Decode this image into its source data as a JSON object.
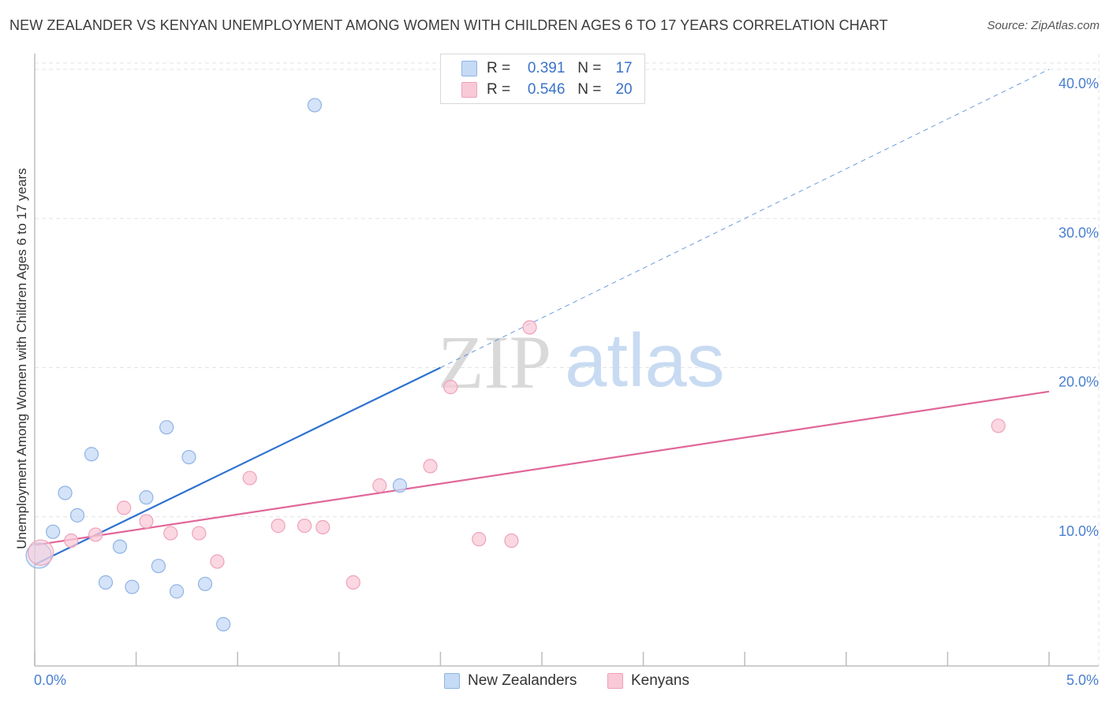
{
  "title": "NEW ZEALANDER VS KENYAN UNEMPLOYMENT AMONG WOMEN WITH CHILDREN AGES 6 TO 17 YEARS CORRELATION CHART",
  "source": "Source: ZipAtlas.com",
  "watermark": {
    "zip": "ZIP",
    "atlas": "atlas"
  },
  "legend": {
    "rows": [
      {
        "r_label": "R =",
        "r_value": "0.391",
        "n_label": "N =",
        "n_value": "17"
      },
      {
        "r_label": "R =",
        "r_value": "0.546",
        "n_label": "N =",
        "n_value": "20"
      }
    ]
  },
  "colors": {
    "nz_fill": "#c5daf5",
    "nz_stroke": "#8fb3e6",
    "nz_line": "#2f72d0",
    "ke_fill": "#f9c9d7",
    "ke_stroke": "#eea2ba",
    "ke_line": "#e0679a",
    "grid": "#e3e3e3",
    "tick_text": "#4a7fd1"
  },
  "chart_data": {
    "type": "scatter",
    "ylabel": "Unemployment Among Women with Children Ages 6 to 17 years",
    "xlabel": "",
    "xlim": [
      0,
      5
    ],
    "ylim": [
      0,
      40
    ],
    "x_tick_labels": [
      "0.0%",
      "5.0%"
    ],
    "y_ticks": [
      10,
      20,
      30,
      40
    ],
    "y_tick_labels": [
      "10.0%",
      "20.0%",
      "30.0%",
      "40.0%"
    ],
    "series": [
      {
        "name": "New Zealanders",
        "points": [
          {
            "x": 0.02,
            "y": 7.4,
            "big": true
          },
          {
            "x": 0.09,
            "y": 9.0
          },
          {
            "x": 0.15,
            "y": 11.6
          },
          {
            "x": 0.21,
            "y": 10.1
          },
          {
            "x": 0.28,
            "y": 14.2
          },
          {
            "x": 0.35,
            "y": 5.6
          },
          {
            "x": 0.42,
            "y": 8.0
          },
          {
            "x": 0.48,
            "y": 5.3
          },
          {
            "x": 0.55,
            "y": 11.3
          },
          {
            "x": 0.61,
            "y": 6.7
          },
          {
            "x": 0.65,
            "y": 16.0
          },
          {
            "x": 0.7,
            "y": 5.0
          },
          {
            "x": 0.76,
            "y": 14.0
          },
          {
            "x": 0.84,
            "y": 5.5
          },
          {
            "x": 0.93,
            "y": 2.8
          },
          {
            "x": 1.38,
            "y": 37.6
          },
          {
            "x": 1.8,
            "y": 12.1
          }
        ],
        "trend": {
          "x0": 0.0,
          "y0": 6.8,
          "x1": 2.0,
          "y1": 20.0,
          "dash_x1": 5.0,
          "dash_y1": 40.0
        }
      },
      {
        "name": "Kenyans",
        "points": [
          {
            "x": 0.03,
            "y": 7.6,
            "big": true
          },
          {
            "x": 0.18,
            "y": 8.4
          },
          {
            "x": 0.3,
            "y": 8.8
          },
          {
            "x": 0.44,
            "y": 10.6
          },
          {
            "x": 0.55,
            "y": 9.7
          },
          {
            "x": 0.67,
            "y": 8.9
          },
          {
            "x": 0.81,
            "y": 8.9
          },
          {
            "x": 0.9,
            "y": 7.0
          },
          {
            "x": 1.06,
            "y": 12.6
          },
          {
            "x": 1.2,
            "y": 9.4
          },
          {
            "x": 1.33,
            "y": 9.4
          },
          {
            "x": 1.42,
            "y": 9.3
          },
          {
            "x": 1.57,
            "y": 5.6
          },
          {
            "x": 1.7,
            "y": 12.1
          },
          {
            "x": 1.95,
            "y": 13.4
          },
          {
            "x": 2.05,
            "y": 18.7
          },
          {
            "x": 2.19,
            "y": 8.5
          },
          {
            "x": 2.35,
            "y": 8.4
          },
          {
            "x": 2.44,
            "y": 22.7
          },
          {
            "x": 4.75,
            "y": 16.1
          }
        ],
        "trend": {
          "x0": 0.0,
          "y0": 8.1,
          "x1": 5.0,
          "y1": 18.4
        }
      }
    ]
  }
}
